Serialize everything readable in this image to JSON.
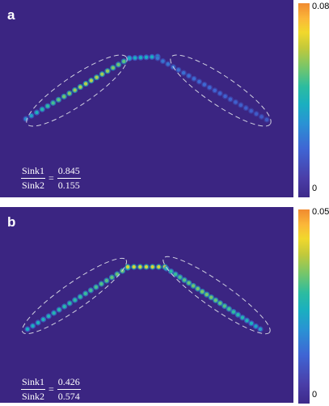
{
  "panels": [
    {
      "letter": "a",
      "ratio": {
        "num_label": "Sink1",
        "den_label": "Sink2",
        "num_value": "0.845",
        "den_value": "0.155"
      },
      "colorbar": {
        "max": "0.08",
        "min": "0"
      }
    },
    {
      "letter": "b",
      "ratio": {
        "num_label": "Sink1",
        "den_label": "Sink2",
        "num_value": "0.426",
        "den_value": "0.574"
      },
      "colorbar": {
        "max": "0.05",
        "min": "0"
      }
    }
  ],
  "colors": {
    "background": "#3b2582",
    "low": "#3e2a8a",
    "mid": "#2cbca0",
    "high": "#f08a30",
    "ellipse": "#c8c8d8"
  }
}
